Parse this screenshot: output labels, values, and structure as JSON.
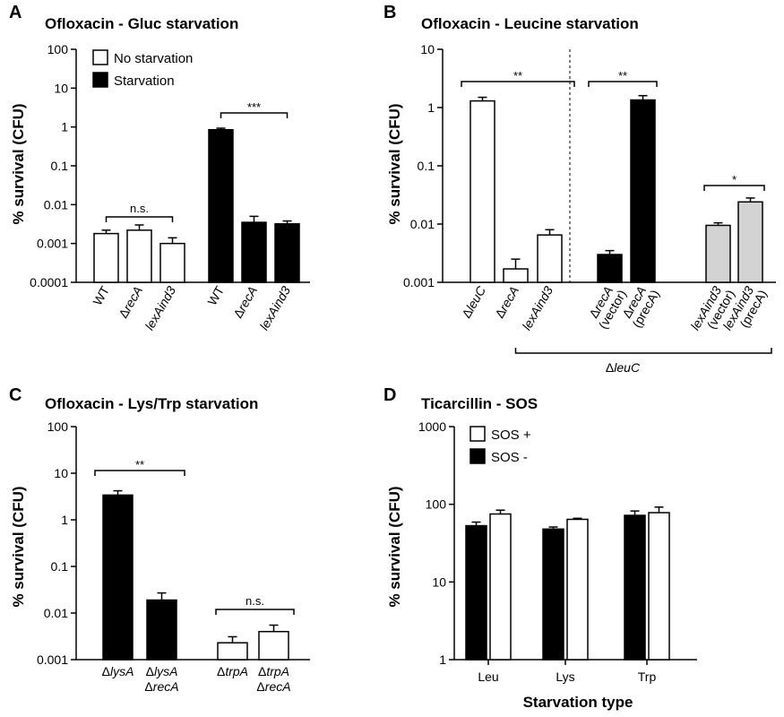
{
  "chart_data": [
    {
      "id": "A",
      "panel_label": "A",
      "type": "bar",
      "title": "Ofloxacin - Gluc starvation",
      "ylabel": "% survival (CFU)",
      "yscale": "log",
      "ylim": [
        0.0001,
        100
      ],
      "yticks": [
        "100",
        "10",
        "1",
        "0.1",
        "0.01",
        "0.001",
        "0.0001"
      ],
      "legend": {
        "placement": "top-left",
        "entries": [
          {
            "label": "No starvation",
            "fill": "#ffffff"
          },
          {
            "label": "Starvation",
            "fill": "#000000"
          }
        ]
      },
      "categories": [
        [
          {
            "t": "WT",
            "i": false
          }
        ],
        [
          {
            "t": "Δ",
            "i": false
          },
          {
            "t": "recA",
            "i": true
          }
        ],
        [
          {
            "t": "lexAind3",
            "i": true
          }
        ],
        [
          {
            "t": "WT",
            "i": false
          }
        ],
        [
          {
            "t": "Δ",
            "i": false
          },
          {
            "t": "recA",
            "i": true
          }
        ],
        [
          {
            "t": "lexAind3",
            "i": true
          }
        ]
      ],
      "values": [
        0.0018,
        0.0022,
        0.001,
        0.85,
        0.0035,
        0.0032
      ],
      "errors": [
        0.0004,
        0.0008,
        0.0004,
        0.08,
        0.0015,
        0.0006
      ],
      "fills": [
        "#ffffff",
        "#ffffff",
        "#ffffff",
        "#000000",
        "#000000",
        "#000000"
      ],
      "significance": [
        {
          "from": 0,
          "to": 2,
          "label": "n.s."
        },
        {
          "from": 3,
          "to": 5,
          "label": "***"
        }
      ]
    },
    {
      "id": "B",
      "panel_label": "B",
      "type": "bar",
      "title": "Ofloxacin - Leucine starvation",
      "ylabel": "% survival (CFU)",
      "yscale": "log",
      "ylim": [
        0.001,
        10
      ],
      "yticks": [
        "10",
        "1",
        "0.1",
        "0.01",
        "0.001"
      ],
      "categories": [
        [
          {
            "t": "Δ",
            "i": false
          },
          {
            "t": "leuC",
            "i": true
          }
        ],
        [
          {
            "t": "Δ",
            "i": false
          },
          {
            "t": "recA",
            "i": true
          }
        ],
        [
          {
            "t": "lexAind3",
            "i": true
          }
        ],
        [
          {
            "t": "Δ",
            "i": false
          },
          {
            "t": "recA",
            "i": true
          },
          {
            "t": "|(vector)",
            "i": false
          }
        ],
        [
          {
            "t": "Δ",
            "i": false
          },
          {
            "t": "recA",
            "i": true
          },
          {
            "t": "|(precA)",
            "i": false
          }
        ],
        [
          {
            "t": "lexAind3",
            "i": true
          },
          {
            "t": "|(vector)",
            "i": false
          }
        ],
        [
          {
            "t": "lexAind3",
            "i": true
          },
          {
            "t": "|(precA)",
            "i": false
          }
        ]
      ],
      "values": [
        1.3,
        0.0017,
        0.0065,
        0.003,
        1.35,
        0.0095,
        0.024
      ],
      "errors": [
        0.2,
        0.0008,
        0.0015,
        0.0005,
        0.25,
        0.001,
        0.004
      ],
      "fills": [
        "#ffffff",
        "#ffffff",
        "#ffffff",
        "#000000",
        "#000000",
        "#d3d3d3",
        "#d3d3d3"
      ],
      "significance": [
        {
          "from": 0,
          "to": 2,
          "label": "**"
        },
        {
          "from": 3,
          "to": 4,
          "label": "**"
        },
        {
          "from": 5,
          "to": 6,
          "label": "*"
        }
      ],
      "group_bracket": {
        "from": 1,
        "to": 6,
        "label": [
          {
            "t": "Δ",
            "i": false
          },
          {
            "t": "leuC",
            "i": true
          }
        ]
      }
    },
    {
      "id": "C",
      "panel_label": "C",
      "type": "bar",
      "title": "Ofloxacin - Lys/Trp starvation",
      "ylabel": "% survival (CFU)",
      "yscale": "log",
      "ylim": [
        0.001,
        100
      ],
      "yticks": [
        "100",
        "10",
        "1",
        "0.1",
        "0.01",
        "0.001"
      ],
      "categories": [
        [
          {
            "t": "Δ",
            "i": false
          },
          {
            "t": "lysA",
            "i": true
          }
        ],
        [
          {
            "t": "Δ",
            "i": false
          },
          {
            "t": "lysA",
            "i": true
          },
          {
            "t": "|Δ",
            "i": false
          },
          {
            "t": "recA",
            "i": true
          }
        ],
        [
          {
            "t": "Δ",
            "i": false
          },
          {
            "t": "trpA",
            "i": true
          }
        ],
        [
          {
            "t": "Δ",
            "i": false
          },
          {
            "t": "trpA",
            "i": true
          },
          {
            "t": "|Δ",
            "i": false
          },
          {
            "t": "recA",
            "i": true
          }
        ]
      ],
      "values": [
        3.4,
        0.019,
        0.0023,
        0.004
      ],
      "errors": [
        0.8,
        0.008,
        0.0008,
        0.0015
      ],
      "fills": [
        "#000000",
        "#000000",
        "#ffffff",
        "#ffffff"
      ],
      "significance": [
        {
          "from": 0,
          "to": 1,
          "label": "**"
        },
        {
          "from": 2,
          "to": 3,
          "label": "n.s."
        }
      ]
    },
    {
      "id": "D",
      "panel_label": "D",
      "type": "bar",
      "title": "Ticarcillin - SOS",
      "ylabel": "% survival (CFU)",
      "xlabel": "Starvation type",
      "yscale": "log",
      "ylim": [
        1,
        1000
      ],
      "yticks": [
        "1000",
        "100",
        "10",
        "1"
      ],
      "legend": {
        "placement": "top-left",
        "entries": [
          {
            "label": "SOS +",
            "fill": "#ffffff"
          },
          {
            "label": "SOS -",
            "fill": "#000000"
          }
        ]
      },
      "categories": [
        "Leu",
        "Lys",
        "Trp"
      ],
      "series": [
        {
          "values": [
            53,
            48,
            72
          ],
          "errors": [
            6,
            3,
            10
          ],
          "fill": "#000000"
        },
        {
          "values": [
            75,
            64,
            78
          ],
          "errors": [
            9,
            2,
            14
          ],
          "fill": "#ffffff"
        }
      ]
    }
  ]
}
